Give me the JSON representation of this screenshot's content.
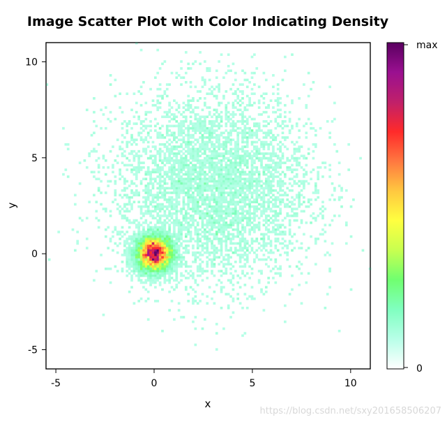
{
  "chart_data": {
    "type": "heatmap",
    "title": "Image Scatter Plot with Color Indicating Density",
    "xlabel": "x",
    "ylabel": "y",
    "xlim": [
      -5.5,
      11
    ],
    "ylim": [
      -6,
      11
    ],
    "xticks": [
      -5,
      0,
      5,
      10
    ],
    "yticks": [
      -5,
      0,
      5,
      10
    ],
    "grid": false,
    "colorbar": {
      "labels": [
        "max",
        "0"
      ],
      "colors": [
        "#ffffff",
        "#b8ffe8",
        "#80ffc0",
        "#70ff70",
        "#c8ff50",
        "#ffff40",
        "#ffc840",
        "#ff7840",
        "#ff2a2a",
        "#c0206a",
        "#9a1090",
        "#5a0060"
      ]
    },
    "clusters": [
      {
        "center_x": 0,
        "center_y": 0,
        "spread_x": 0.5,
        "spread_y": 0.5,
        "relative_density": "high"
      },
      {
        "center_x": 3,
        "center_y": 3.5,
        "spread_x": 2.5,
        "spread_y": 2.5,
        "relative_density": "low"
      }
    ]
  },
  "watermark": "https://blog.csdn.net/sxy201658506207"
}
